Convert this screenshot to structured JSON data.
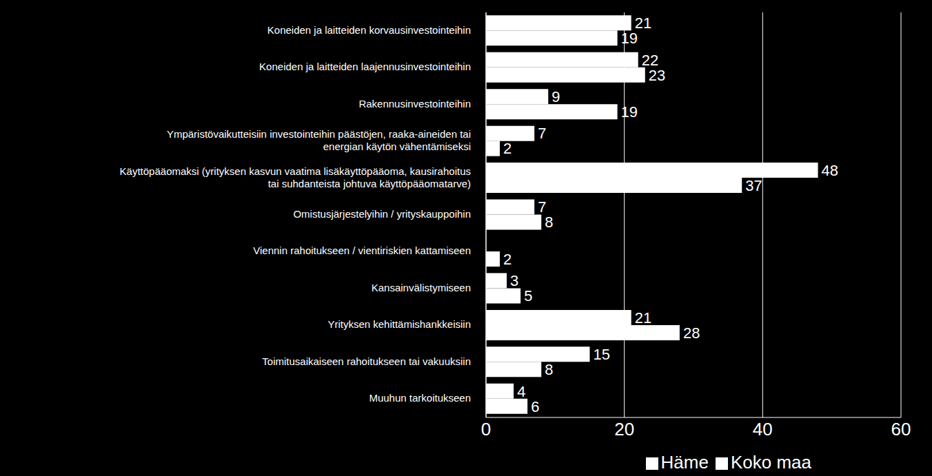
{
  "chart_data": {
    "type": "bar",
    "orientation": "horizontal",
    "categories": [
      "Koneiden ja laitteiden korvausinvestointeihin",
      "Koneiden ja laitteiden laajennusinvestointeihin",
      "Rakennusinvestointeihin",
      "Ympäristövaikutteisiin investointeihin päästöjen, raaka-aineiden tai energian käytön vähentämiseksi",
      "Käyttöpääomaksi (yrityksen kasvun vaatima lisäkäyttöpääoma, kausirahoitus tai suhdanteista johtuva käyttöpääomatarve)",
      "Omistusjärjestelyihin / yrityskauppoihin",
      "Viennin rahoitukseen / vientiriskien kattamiseen",
      "Kansainvälistymiseen",
      "Yrityksen kehittämishankkeisiin",
      "Toimitusaikaiseen rahoitukseen tai vakuuksiin",
      "Muuhun tarkoitukseen"
    ],
    "series": [
      {
        "name": "Häme",
        "color": "#ffffff",
        "values": [
          21,
          22,
          9,
          7,
          48,
          7,
          null,
          3,
          21,
          15,
          4
        ]
      },
      {
        "name": "Koko maa",
        "color": "#ffffff",
        "values": [
          19,
          23,
          19,
          2,
          37,
          8,
          2,
          5,
          28,
          8,
          6
        ]
      }
    ],
    "xlim": [
      0,
      60
    ],
    "xticks": [
      0,
      20,
      40,
      60
    ],
    "grid": true,
    "legend": "bottom",
    "data_labels": true
  }
}
